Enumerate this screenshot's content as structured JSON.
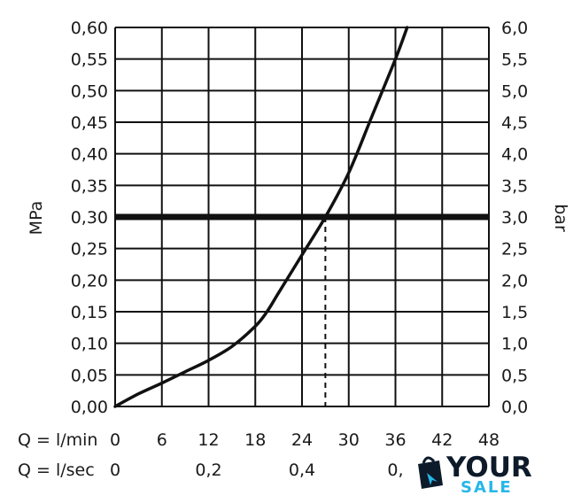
{
  "chart_data": {
    "type": "line",
    "left_axis": {
      "label": "MPa",
      "ylim": [
        0,
        0.6
      ],
      "ticks": [
        "0,00",
        "0,05",
        "0,10",
        "0,15",
        "0,20",
        "0,25",
        "0,30",
        "0,35",
        "0,40",
        "0,45",
        "0,50",
        "0,55",
        "0,60"
      ]
    },
    "right_axis": {
      "label": "bar",
      "ylim": [
        0,
        6
      ],
      "ticks": [
        "0,0",
        "0,5",
        "1,0",
        "1,5",
        "2,0",
        "2,5",
        "3,0",
        "3,5",
        "4,0",
        "4,5",
        "5,0",
        "5,5",
        "6,0"
      ]
    },
    "x_axis_lmin": {
      "label": "Q = l/min",
      "xlim": [
        0,
        48
      ],
      "ticks": [
        "0",
        "6",
        "12",
        "18",
        "24",
        "30",
        "36",
        "42",
        "48"
      ]
    },
    "x_axis_lsec": {
      "label": "Q = l/sec",
      "tick_values": [
        0,
        12,
        24,
        36
      ],
      "ticks": [
        "0",
        "0,2",
        "0,4",
        "0,"
      ]
    },
    "grid": true,
    "series": [
      {
        "x": [
          0,
          3,
          6,
          9,
          12,
          15,
          18,
          19.5,
          21,
          24,
          27,
          30,
          33,
          36,
          37.5
        ],
        "y": [
          0,
          0.02,
          0.037,
          0.055,
          0.073,
          0.095,
          0.127,
          0.15,
          0.18,
          0.24,
          0.3,
          0.37,
          0.46,
          0.55,
          0.6
        ]
      }
    ],
    "reference_line": {
      "y": 0.3
    },
    "marker_line": {
      "x": 27,
      "y": 0.3,
      "style": "dashed"
    }
  },
  "logo": {
    "line1": "YOUR",
    "line2": "SALE"
  },
  "colors": {
    "line": "#111111",
    "grid": "#111111",
    "logo_dark": "#0d1a2a",
    "logo_accent": "#27b7e8"
  }
}
